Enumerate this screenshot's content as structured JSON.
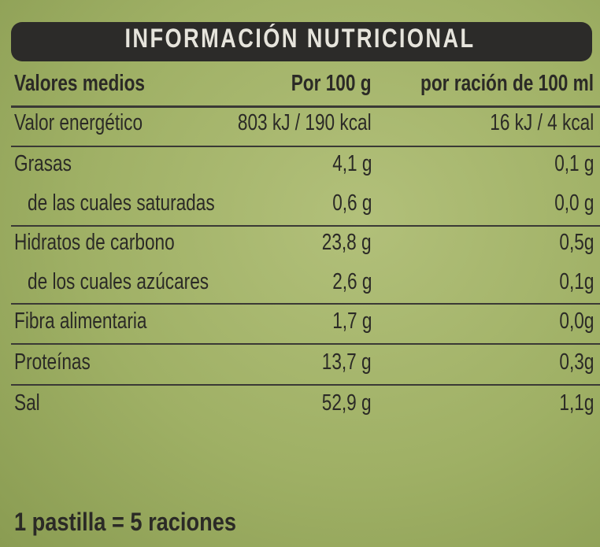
{
  "header": {
    "title": "INFORMACIÓN NUTRICIONAL"
  },
  "table": {
    "header": [
      "Valores medios",
      "Por 100 g",
      "por ración de 100 ml"
    ],
    "rows": [
      [
        "Valor energético",
        "803 kJ / 190 kcal",
        "16 kJ / 4 kcal"
      ],
      [
        "Grasas",
        "4,1 g",
        "0,1 g"
      ],
      [
        "de las cuales saturadas",
        "0,6 g",
        "0,0 g"
      ],
      [
        "Hidratos de carbono",
        "23,8 g",
        "0,5g"
      ],
      [
        "de los cuales azúcares",
        "2,6 g",
        "0,1g"
      ],
      [
        "Fibra alimentaria",
        "1,7 g",
        "0,0g"
      ],
      [
        "Proteínas",
        "13,7 g",
        "0,3g"
      ],
      [
        "Sal",
        "52,9 g",
        "1,1g"
      ]
    ]
  },
  "footer": {
    "text": "1 pastilla = 5 raciones"
  }
}
